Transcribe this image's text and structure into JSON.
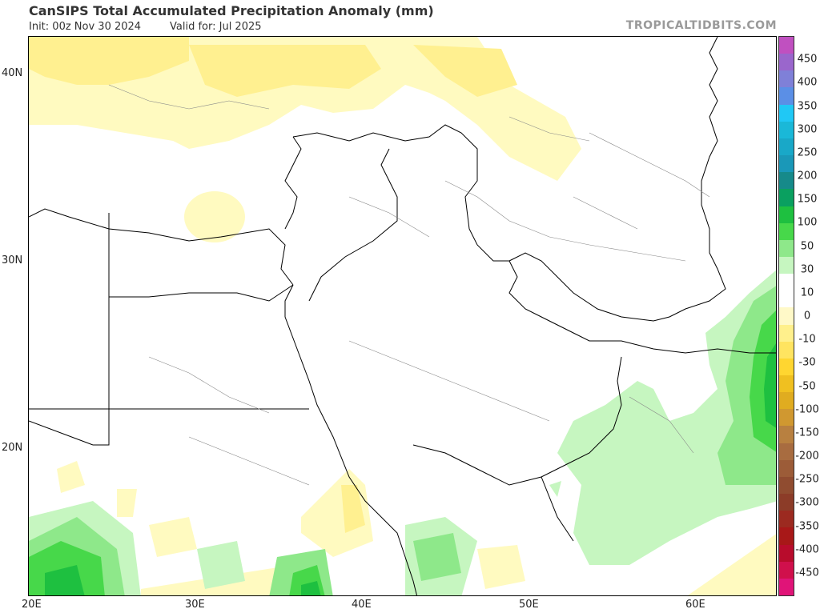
{
  "header": {
    "title": "CanSIPS Total Accumulated Precipitation Anomaly (mm)",
    "init": "Init: 00z Nov 30 2024",
    "valid": "Valid for: Jul 2025",
    "brand": "TROPICALTIDBITS.COM"
  },
  "axes": {
    "lat_labels": [
      "40N",
      "30N",
      "20N"
    ],
    "lon_labels": [
      "20E",
      "30E",
      "40E",
      "50E",
      "60E"
    ]
  },
  "colorbar": {
    "labels": [
      "450",
      "400",
      "350",
      "300",
      "250",
      "200",
      "150",
      "100",
      "50",
      "30",
      "10",
      "0",
      "-10",
      "-30",
      "-50",
      "-100",
      "-150",
      "-200",
      "-250",
      "-300",
      "-350",
      "-400",
      "-450"
    ],
    "colors": [
      "#c050c0",
      "#9a66cc",
      "#7f80d8",
      "#5b8fe6",
      "#20c8f5",
      "#1ab8d8",
      "#19a8c8",
      "#1a98b8",
      "#168a8a",
      "#0aa060",
      "#1ec040",
      "#47d84a",
      "#8ee88a",
      "#c6f6c0",
      "#ffffff",
      "#ffffff",
      "#fff9c8",
      "#fff08c",
      "#ffe460",
      "#ffd630",
      "#f0c020",
      "#e0ac20",
      "#d09830",
      "#b88040",
      "#a86c40",
      "#9c5c38",
      "#904c30",
      "#8c3c28",
      "#9c2a20",
      "#a81818",
      "#b80c2c",
      "#d0104c",
      "#e01478"
    ]
  }
}
